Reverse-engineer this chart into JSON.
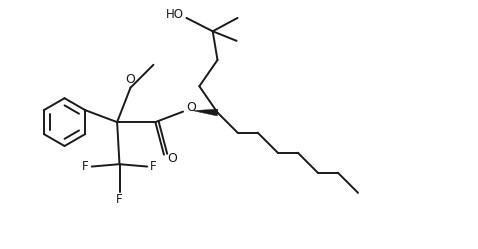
{
  "bg_color": "#ffffff",
  "line_color": "#1a1a1a",
  "line_width": 1.4,
  "text_color": "#1a1a1a",
  "font_size": 8.5,
  "xlim": [
    0,
    10
  ],
  "ylim": [
    0,
    5.2
  ]
}
